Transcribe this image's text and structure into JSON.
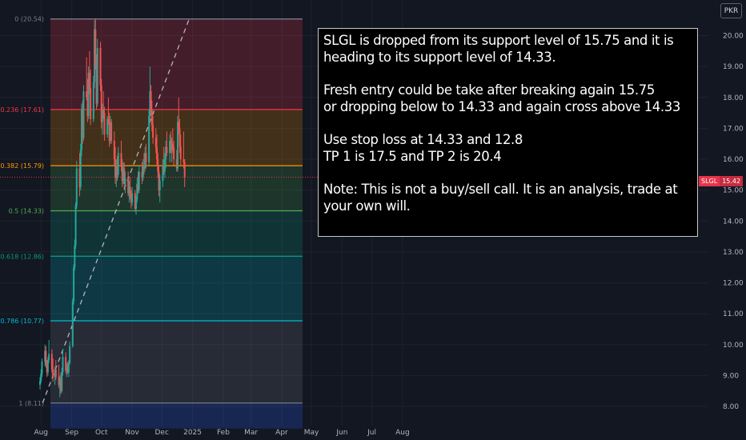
{
  "currency": "PKR",
  "ticker": {
    "symbol": "SLGL",
    "last_price": "15.42"
  },
  "annotation": {
    "paragraphs": [
      "SLGL is dropped from its support level of 15.75 and it is heading to its support level of 14.33.",
      "Fresh entry could be take after breaking again 15.75\nor dropping below to 14.33 and again cross above 14.33",
      "Use stop loss at 14.33 and 12.8\nTP 1 is 17.5 and TP 2 is 20.4",
      "Note: This is not a buy/sell call. It is an analysis, trade at your own will."
    ]
  },
  "colors": {
    "background": "#131722",
    "up_candle": "#26a69a",
    "down_candle": "#ef5350",
    "trendline": "#b2b5be",
    "price_line": "#e6344a"
  },
  "chart_data": {
    "type": "candlestick",
    "y_axis": {
      "ticks": [
        "8.00",
        "9.00",
        "10.00",
        "11.00",
        "12.00",
        "13.00",
        "14.00",
        "15.00",
        "16.00",
        "17.00",
        "18.00",
        "19.00",
        "20.00"
      ],
      "range": [
        7.8,
        20.9
      ],
      "position": "right"
    },
    "x_axis": {
      "ticks": [
        "Aug",
        "Sep",
        "Oct",
        "Nov",
        "Dec",
        "2025",
        "Feb",
        "Mar",
        "Apr",
        "May",
        "Jun",
        "Jul",
        "Aug"
      ],
      "range": [
        "2024-07-31",
        "2025-08-15"
      ]
    },
    "fibonacci": {
      "start_date": "2024-08-01",
      "end_date": "2024-12-31",
      "levels": [
        {
          "label": "0 (20.54)",
          "ratio": 0,
          "price": 20.54,
          "color": "#787b86",
          "fill": "rgba(242,54,69,0.22)"
        },
        {
          "label": "0.236 (17.61)",
          "ratio": 0.236,
          "price": 17.61,
          "color": "#f23645",
          "fill": "rgba(255,152,0,0.20)"
        },
        {
          "label": "0.382 (15.79)",
          "ratio": 0.382,
          "price": 15.79,
          "color": "#ff9800",
          "fill": "rgba(76,175,80,0.20)"
        },
        {
          "label": "0.5 (14.33)",
          "ratio": 0.5,
          "price": 14.33,
          "color": "#4caf50",
          "fill": "rgba(8,153,129,0.22)"
        },
        {
          "label": "0.618 (12.86)",
          "ratio": 0.618,
          "price": 12.86,
          "color": "#089981",
          "fill": "rgba(0,188,212,0.20)"
        },
        {
          "label": "0.786 (10.77)",
          "ratio": 0.786,
          "price": 10.77,
          "color": "#00bcd4",
          "fill": "rgba(120,123,134,0.20)"
        },
        {
          "label": "1 (8.11)",
          "ratio": 1,
          "price": 8.11,
          "color": "#787b86",
          "fill": "rgba(41,98,255,0.22)"
        }
      ],
      "lower_extension_fill_to": 7.8
    },
    "trendline": {
      "from": {
        "date": "2024-08-01",
        "price": 8.11
      },
      "to": {
        "date": "2024-12-31",
        "price": 20.54
      },
      "style": "dashed"
    },
    "last_price": 15.42,
    "ohlc": [
      {
        "d": "2024-07-31",
        "o": 8.7,
        "h": 8.95,
        "l": 8.55,
        "c": 8.82
      },
      {
        "d": "2024-08-01",
        "o": 8.82,
        "h": 9.2,
        "l": 8.75,
        "c": 9.05
      },
      {
        "d": "2024-08-02",
        "o": 9.05,
        "h": 9.55,
        "l": 8.95,
        "c": 9.45
      },
      {
        "d": "2024-08-05",
        "o": 9.45,
        "h": 10.0,
        "l": 9.3,
        "c": 9.8
      },
      {
        "d": "2024-08-06",
        "o": 9.8,
        "h": 9.95,
        "l": 9.25,
        "c": 9.35
      },
      {
        "d": "2024-08-07",
        "o": 9.35,
        "h": 9.5,
        "l": 8.95,
        "c": 9.1
      },
      {
        "d": "2024-08-08",
        "o": 9.1,
        "h": 9.6,
        "l": 9.0,
        "c": 9.5
      },
      {
        "d": "2024-08-09",
        "o": 9.5,
        "h": 10.15,
        "l": 9.4,
        "c": 9.7
      },
      {
        "d": "2024-08-12",
        "o": 9.7,
        "h": 9.85,
        "l": 9.1,
        "c": 9.2
      },
      {
        "d": "2024-08-13",
        "o": 9.2,
        "h": 9.55,
        "l": 8.8,
        "c": 8.95
      },
      {
        "d": "2024-08-15",
        "o": 8.95,
        "h": 9.3,
        "l": 8.7,
        "c": 9.2
      },
      {
        "d": "2024-08-16",
        "o": 9.2,
        "h": 9.5,
        "l": 8.85,
        "c": 8.95
      },
      {
        "d": "2024-08-19",
        "o": 8.95,
        "h": 9.35,
        "l": 8.6,
        "c": 8.7
      },
      {
        "d": "2024-08-20",
        "o": 8.7,
        "h": 9.0,
        "l": 8.3,
        "c": 8.9
      },
      {
        "d": "2024-08-21",
        "o": 8.9,
        "h": 9.1,
        "l": 8.4,
        "c": 8.5
      },
      {
        "d": "2024-08-22",
        "o": 8.5,
        "h": 9.25,
        "l": 8.45,
        "c": 9.1
      },
      {
        "d": "2024-08-23",
        "o": 9.1,
        "h": 9.85,
        "l": 9.0,
        "c": 9.6
      },
      {
        "d": "2024-08-26",
        "o": 9.6,
        "h": 9.75,
        "l": 9.05,
        "c": 9.15
      },
      {
        "d": "2024-08-27",
        "o": 9.15,
        "h": 9.4,
        "l": 8.95,
        "c": 9.3
      },
      {
        "d": "2024-08-28",
        "o": 9.3,
        "h": 9.45,
        "l": 9.05,
        "c": 9.1
      },
      {
        "d": "2024-08-29",
        "o": 9.1,
        "h": 9.5,
        "l": 8.95,
        "c": 9.4
      },
      {
        "d": "2024-08-30",
        "o": 9.4,
        "h": 10.1,
        "l": 9.35,
        "c": 9.95
      },
      {
        "d": "2024-09-02",
        "o": 9.95,
        "h": 11.5,
        "l": 9.9,
        "c": 11.4
      },
      {
        "d": "2024-09-03",
        "o": 11.4,
        "h": 12.6,
        "l": 11.3,
        "c": 12.5
      },
      {
        "d": "2024-09-04",
        "o": 12.5,
        "h": 13.4,
        "l": 12.4,
        "c": 13.2
      },
      {
        "d": "2024-09-05",
        "o": 13.2,
        "h": 14.6,
        "l": 13.1,
        "c": 14.5
      },
      {
        "d": "2024-09-06",
        "o": 14.5,
        "h": 15.95,
        "l": 14.4,
        "c": 15.7
      },
      {
        "d": "2024-09-09",
        "o": 15.7,
        "h": 16.2,
        "l": 14.8,
        "c": 15.1
      },
      {
        "d": "2024-09-10",
        "o": 15.1,
        "h": 16.5,
        "l": 15.0,
        "c": 16.3
      },
      {
        "d": "2024-09-11",
        "o": 16.3,
        "h": 17.8,
        "l": 16.1,
        "c": 17.6
      },
      {
        "d": "2024-09-12",
        "o": 17.6,
        "h": 17.9,
        "l": 16.5,
        "c": 16.7
      },
      {
        "d": "2024-09-13",
        "o": 16.7,
        "h": 18.4,
        "l": 16.6,
        "c": 18.2
      },
      {
        "d": "2024-09-16",
        "o": 18.2,
        "h": 19.3,
        "l": 17.9,
        "c": 18.0
      },
      {
        "d": "2024-09-17",
        "o": 18.0,
        "h": 18.6,
        "l": 17.2,
        "c": 17.4
      },
      {
        "d": "2024-09-18",
        "o": 17.4,
        "h": 19.0,
        "l": 17.3,
        "c": 18.8
      },
      {
        "d": "2024-09-19",
        "o": 18.8,
        "h": 19.5,
        "l": 18.1,
        "c": 18.3
      },
      {
        "d": "2024-09-20",
        "o": 18.3,
        "h": 18.9,
        "l": 17.1,
        "c": 17.3
      },
      {
        "d": "2024-09-23",
        "o": 17.3,
        "h": 18.7,
        "l": 17.2,
        "c": 18.5
      },
      {
        "d": "2024-09-24",
        "o": 18.5,
        "h": 20.5,
        "l": 18.3,
        "c": 20.2
      },
      {
        "d": "2024-09-25",
        "o": 20.2,
        "h": 20.54,
        "l": 18.9,
        "c": 19.1
      },
      {
        "d": "2024-09-26",
        "o": 19.1,
        "h": 19.4,
        "l": 17.6,
        "c": 17.8
      },
      {
        "d": "2024-09-27",
        "o": 17.8,
        "h": 19.9,
        "l": 17.7,
        "c": 19.6
      },
      {
        "d": "2024-09-30",
        "o": 19.6,
        "h": 19.8,
        "l": 18.2,
        "c": 18.4
      },
      {
        "d": "2024-10-01",
        "o": 18.4,
        "h": 18.6,
        "l": 17.0,
        "c": 17.2
      },
      {
        "d": "2024-10-02",
        "o": 17.2,
        "h": 17.8,
        "l": 16.8,
        "c": 17.6
      },
      {
        "d": "2024-10-03",
        "o": 17.6,
        "h": 18.2,
        "l": 17.3,
        "c": 17.5
      },
      {
        "d": "2024-10-04",
        "o": 17.5,
        "h": 17.7,
        "l": 16.6,
        "c": 16.8
      },
      {
        "d": "2024-10-07",
        "o": 16.8,
        "h": 17.4,
        "l": 16.7,
        "c": 17.3
      },
      {
        "d": "2024-10-08",
        "o": 17.3,
        "h": 18.0,
        "l": 17.1,
        "c": 17.2
      },
      {
        "d": "2024-10-09",
        "o": 17.2,
        "h": 17.5,
        "l": 16.4,
        "c": 16.6
      },
      {
        "d": "2024-10-10",
        "o": 16.6,
        "h": 17.4,
        "l": 16.5,
        "c": 17.2
      },
      {
        "d": "2024-10-11",
        "o": 17.2,
        "h": 17.3,
        "l": 16.5,
        "c": 16.6
      },
      {
        "d": "2024-10-14",
        "o": 16.6,
        "h": 16.9,
        "l": 15.8,
        "c": 16.0
      },
      {
        "d": "2024-10-15",
        "o": 16.0,
        "h": 16.4,
        "l": 15.2,
        "c": 15.4
      },
      {
        "d": "2024-10-16",
        "o": 15.4,
        "h": 16.0,
        "l": 15.1,
        "c": 15.8
      },
      {
        "d": "2024-10-17",
        "o": 15.8,
        "h": 16.1,
        "l": 15.3,
        "c": 15.5
      },
      {
        "d": "2024-10-18",
        "o": 15.5,
        "h": 16.4,
        "l": 15.4,
        "c": 16.2
      },
      {
        "d": "2024-10-21",
        "o": 16.2,
        "h": 16.6,
        "l": 15.6,
        "c": 15.8
      },
      {
        "d": "2024-10-22",
        "o": 15.8,
        "h": 16.0,
        "l": 15.1,
        "c": 15.3
      },
      {
        "d": "2024-10-23",
        "o": 15.3,
        "h": 15.9,
        "l": 15.2,
        "c": 15.7
      },
      {
        "d": "2024-10-24",
        "o": 15.7,
        "h": 15.9,
        "l": 15.0,
        "c": 15.2
      },
      {
        "d": "2024-10-25",
        "o": 15.2,
        "h": 15.6,
        "l": 14.9,
        "c": 15.4
      },
      {
        "d": "2024-10-28",
        "o": 15.4,
        "h": 15.6,
        "l": 14.8,
        "c": 14.9
      },
      {
        "d": "2024-10-29",
        "o": 14.9,
        "h": 15.3,
        "l": 14.6,
        "c": 15.1
      },
      {
        "d": "2024-10-30",
        "o": 15.1,
        "h": 15.4,
        "l": 14.7,
        "c": 14.8
      },
      {
        "d": "2024-10-31",
        "o": 14.8,
        "h": 15.0,
        "l": 14.4,
        "c": 14.6
      },
      {
        "d": "2024-11-01",
        "o": 14.6,
        "h": 15.1,
        "l": 14.5,
        "c": 14.9
      },
      {
        "d": "2024-11-04",
        "o": 14.9,
        "h": 15.0,
        "l": 14.3,
        "c": 14.4
      },
      {
        "d": "2024-11-05",
        "o": 14.4,
        "h": 14.8,
        "l": 14.2,
        "c": 14.7
      },
      {
        "d": "2024-11-06",
        "o": 14.7,
        "h": 15.4,
        "l": 14.6,
        "c": 15.2
      },
      {
        "d": "2024-11-07",
        "o": 15.2,
        "h": 15.6,
        "l": 14.9,
        "c": 15.0
      },
      {
        "d": "2024-11-08",
        "o": 15.0,
        "h": 15.8,
        "l": 14.9,
        "c": 15.6
      },
      {
        "d": "2024-11-11",
        "o": 15.6,
        "h": 15.9,
        "l": 15.2,
        "c": 15.4
      },
      {
        "d": "2024-11-12",
        "o": 15.4,
        "h": 16.0,
        "l": 15.3,
        "c": 15.8
      },
      {
        "d": "2024-11-13",
        "o": 15.8,
        "h": 16.2,
        "l": 15.5,
        "c": 15.7
      },
      {
        "d": "2024-11-14",
        "o": 15.7,
        "h": 16.4,
        "l": 15.6,
        "c": 16.2
      },
      {
        "d": "2024-11-15",
        "o": 16.2,
        "h": 16.5,
        "l": 15.7,
        "c": 15.9
      },
      {
        "d": "2024-11-18",
        "o": 15.9,
        "h": 17.6,
        "l": 15.8,
        "c": 17.4
      },
      {
        "d": "2024-11-19",
        "o": 17.4,
        "h": 19.0,
        "l": 17.2,
        "c": 18.2
      },
      {
        "d": "2024-11-20",
        "o": 18.2,
        "h": 18.4,
        "l": 17.4,
        "c": 17.6
      },
      {
        "d": "2024-11-21",
        "o": 17.6,
        "h": 17.9,
        "l": 16.9,
        "c": 17.1
      },
      {
        "d": "2024-11-22",
        "o": 17.1,
        "h": 17.4,
        "l": 16.5,
        "c": 16.7
      },
      {
        "d": "2024-11-25",
        "o": 16.7,
        "h": 17.0,
        "l": 16.2,
        "c": 16.4
      },
      {
        "d": "2024-11-26",
        "o": 16.4,
        "h": 16.8,
        "l": 15.8,
        "c": 16.0
      },
      {
        "d": "2024-11-27",
        "o": 16.0,
        "h": 16.2,
        "l": 15.4,
        "c": 15.6
      },
      {
        "d": "2024-11-28",
        "o": 15.6,
        "h": 15.8,
        "l": 14.8,
        "c": 15.0
      },
      {
        "d": "2024-11-29",
        "o": 15.0,
        "h": 15.5,
        "l": 14.6,
        "c": 15.3
      },
      {
        "d": "2024-12-02",
        "o": 15.3,
        "h": 16.0,
        "l": 15.1,
        "c": 15.8
      },
      {
        "d": "2024-12-03",
        "o": 15.8,
        "h": 16.4,
        "l": 15.5,
        "c": 15.6
      },
      {
        "d": "2024-12-04",
        "o": 15.6,
        "h": 16.2,
        "l": 15.4,
        "c": 16.0
      },
      {
        "d": "2024-12-05",
        "o": 16.0,
        "h": 16.6,
        "l": 15.7,
        "c": 16.4
      },
      {
        "d": "2024-12-06",
        "o": 16.4,
        "h": 16.9,
        "l": 16.1,
        "c": 16.2
      },
      {
        "d": "2024-12-09",
        "o": 16.2,
        "h": 16.8,
        "l": 15.9,
        "c": 16.6
      },
      {
        "d": "2024-12-10",
        "o": 16.6,
        "h": 16.9,
        "l": 16.2,
        "c": 16.3
      },
      {
        "d": "2024-12-11",
        "o": 16.3,
        "h": 16.7,
        "l": 15.9,
        "c": 16.5
      },
      {
        "d": "2024-12-12",
        "o": 16.5,
        "h": 17.0,
        "l": 16.2,
        "c": 16.4
      },
      {
        "d": "2024-12-13",
        "o": 16.4,
        "h": 16.6,
        "l": 15.8,
        "c": 16.0
      },
      {
        "d": "2024-12-16",
        "o": 16.0,
        "h": 16.3,
        "l": 15.6,
        "c": 15.7
      },
      {
        "d": "2024-12-17",
        "o": 15.7,
        "h": 17.4,
        "l": 15.6,
        "c": 17.2
      },
      {
        "d": "2024-12-18",
        "o": 17.2,
        "h": 18.0,
        "l": 16.8,
        "c": 17.0
      },
      {
        "d": "2024-12-19",
        "o": 17.0,
        "h": 17.3,
        "l": 16.2,
        "c": 16.4
      },
      {
        "d": "2024-12-20",
        "o": 16.4,
        "h": 16.8,
        "l": 15.8,
        "c": 16.0
      },
      {
        "d": "2024-12-23",
        "o": 16.0,
        "h": 16.9,
        "l": 15.7,
        "c": 15.9
      },
      {
        "d": "2024-12-24",
        "o": 15.9,
        "h": 16.0,
        "l": 15.1,
        "c": 15.42
      }
    ]
  }
}
